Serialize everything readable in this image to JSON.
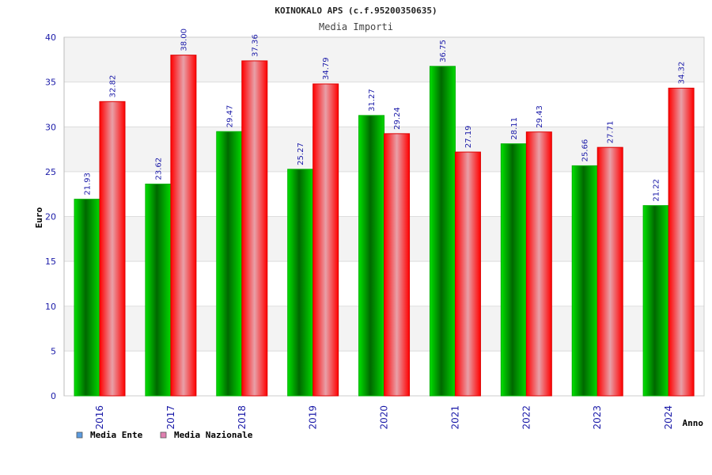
{
  "chart_data": {
    "type": "bar",
    "title": "KOINOKALO APS (c.f.95200350635)",
    "subtitle": "Media Importi",
    "xlabel": "Anno",
    "ylabel": "Euro",
    "ylim": [
      0,
      40
    ],
    "yticks": [
      0,
      5,
      10,
      15,
      20,
      25,
      30,
      35,
      40
    ],
    "grid": true,
    "legend_position": "bottom-left",
    "categories": [
      "2016",
      "2017",
      "2018",
      "2019",
      "2020",
      "2021",
      "2022",
      "2023",
      "2024"
    ],
    "series": [
      {
        "name": "Media Ente",
        "values": [
          21.93,
          23.62,
          29.47,
          25.27,
          31.27,
          36.75,
          28.11,
          25.66,
          21.22
        ],
        "labels": [
          "21.93",
          "23.62",
          "29.47",
          "25.27",
          "31.27",
          "36.75",
          "28.11",
          "25.66",
          "21.22"
        ],
        "color": "#00a000",
        "legend_color": "#5b9be0"
      },
      {
        "name": "Media Nazionale",
        "values": [
          32.82,
          38.0,
          37.36,
          34.79,
          29.24,
          27.19,
          29.43,
          27.71,
          34.32
        ],
        "labels": [
          "32.82",
          "38.00",
          "37.36",
          "34.79",
          "29.24",
          "27.19",
          "29.43",
          "27.71",
          "34.32"
        ],
        "color": "#ee0000",
        "legend_color": "#e080b0"
      }
    ]
  }
}
